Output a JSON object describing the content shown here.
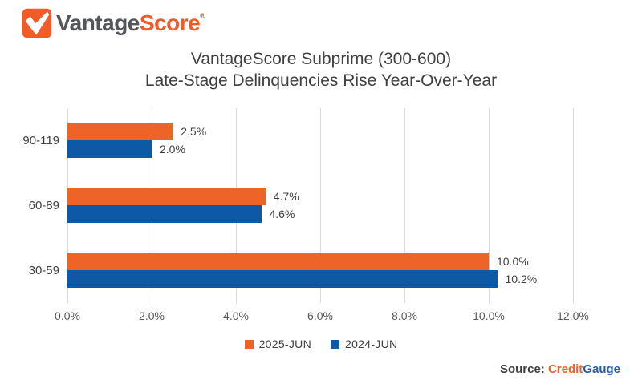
{
  "logo": {
    "text_gray": "Vantage",
    "text_orange": "Score",
    "trademark": "®",
    "gray_color": "#54565A",
    "orange_color": "#F05B28"
  },
  "title": {
    "line1": "VantageScore Subprime (300-600)",
    "line2": "Late-Stage Delinquencies Rise Year-Over-Year"
  },
  "chart_data": {
    "type": "bar",
    "orientation": "horizontal",
    "title": "VantageScore Subprime (300-600) Late-Stage Delinquencies Rise Year-Over-Year",
    "categories": [
      "90-119",
      "60-89",
      "30-59"
    ],
    "series": [
      {
        "name": "2025-JUN",
        "color": "#ED6328",
        "values": [
          2.5,
          4.7,
          10.0
        ],
        "data_labels": [
          "2.5%",
          "4.7%",
          "10.0%"
        ]
      },
      {
        "name": "2024-JUN",
        "color": "#0E59A6",
        "values": [
          2.0,
          4.6,
          10.2
        ],
        "data_labels": [
          "2.0%",
          "4.6%",
          "10.2%"
        ]
      }
    ],
    "xlim": [
      0,
      12
    ],
    "x_tick_labels": [
      "0.0%",
      "2.0%",
      "4.0%",
      "6.0%",
      "8.0%",
      "10.0%",
      "12.0%"
    ],
    "grid": true,
    "gridline_color": "#D9D9D9",
    "legend_position": "bottom"
  },
  "source": {
    "label": "Source:",
    "brand_part1": "Credit",
    "brand_part2": "Gauge"
  }
}
